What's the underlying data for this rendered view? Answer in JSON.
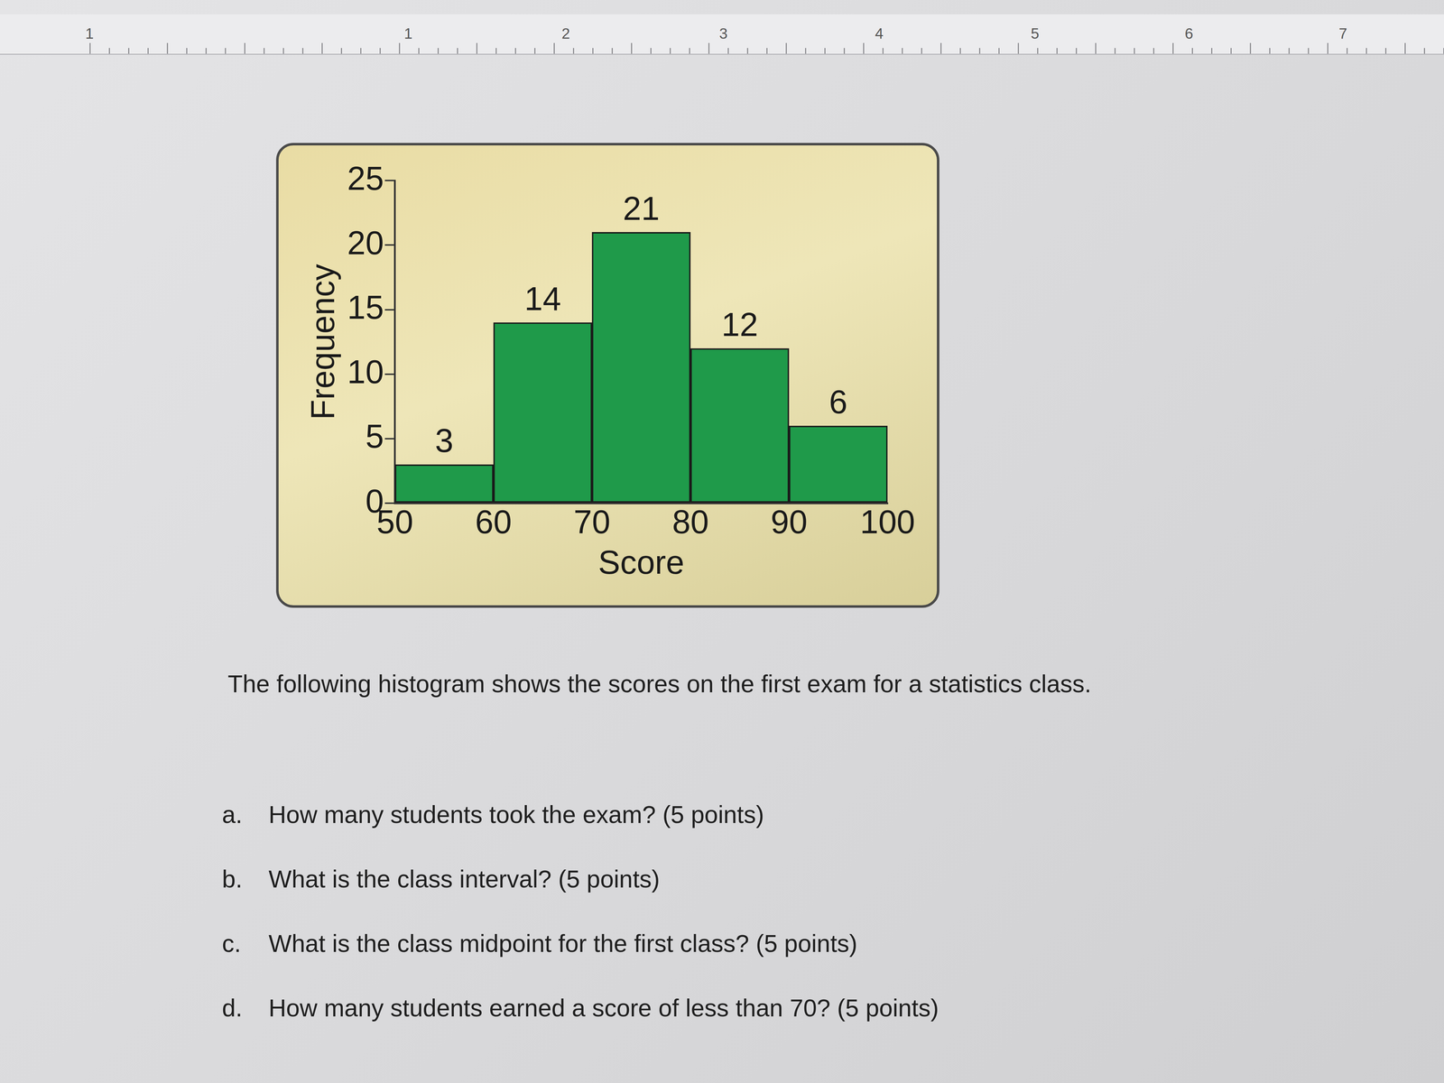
{
  "chart_data": {
    "type": "histogram",
    "x_label": "Score",
    "y_label": "Frequency",
    "bins": [
      50,
      60,
      70,
      80,
      90,
      100
    ],
    "values": [
      3,
      14,
      21,
      12,
      6
    ],
    "color": "#1f9a4a",
    "xlim": [
      50,
      100
    ],
    "xticks": [
      50,
      60,
      70,
      80,
      90,
      100
    ],
    "ylim": [
      0,
      25
    ],
    "yticks": [
      0,
      5,
      10,
      15,
      20,
      25
    ],
    "grid": false,
    "data_labels": true
  },
  "document": {
    "ruler": [
      "1",
      "1",
      "2",
      "3",
      "4",
      "5",
      "6",
      "7"
    ],
    "intro": "The following histogram shows the scores on the first exam for a statistics class.",
    "questions": [
      {
        "letter": "a.",
        "text": "How many students took the exam? (5 points)"
      },
      {
        "letter": "b.",
        "text": "What is the class interval? (5 points)"
      },
      {
        "letter": "c.",
        "text": "What is the class midpoint for the first class? (5 points)"
      },
      {
        "letter": "d.",
        "text": "How many students earned a score of less than 70? (5 points)"
      }
    ]
  }
}
